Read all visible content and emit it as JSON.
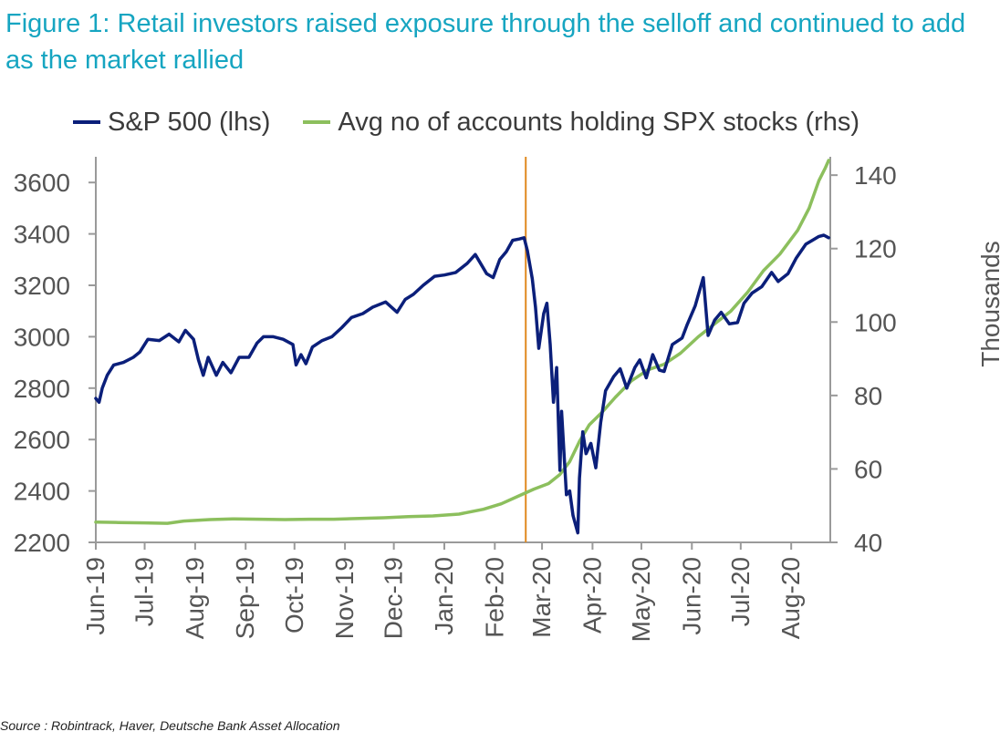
{
  "title": "Figure 1: Retail investors raised exposure through the selloff and continued to add as the market rallied",
  "source": "Source : Robintrack, Haver, Deutsche Bank Asset Allocation",
  "colors": {
    "title": "#16a5c1",
    "spx": "#0b1f7a",
    "accounts": "#8cbf5d",
    "marker": "#e08a20",
    "axis": "#9a9a9a"
  },
  "chart_data": {
    "type": "line",
    "x_type": "date",
    "xlim": [
      "2019-06-01",
      "2020-08-25"
    ],
    "x_tick_labels": [
      "Jun-19",
      "Jul-19",
      "Aug-19",
      "Sep-19",
      "Oct-19",
      "Nov-19",
      "Dec-19",
      "Jan-20",
      "Feb-20",
      "Mar-20",
      "Apr-20",
      "May-20",
      "Jun-20",
      "Jul-20",
      "Aug-20"
    ],
    "ylim_left": [
      2200,
      3700
    ],
    "y_ticks_left": [
      2200,
      2400,
      2600,
      2800,
      3000,
      3200,
      3400,
      3600
    ],
    "ylim_right": [
      40,
      145
    ],
    "y_ticks_right": [
      40,
      60,
      80,
      100,
      120,
      140
    ],
    "ylabel_right": "Thousands",
    "vertical_marker": "2020-02-20",
    "legend_position": "top",
    "series": [
      {
        "name": "S&P 500 (lhs)",
        "axis": "left",
        "points": [
          [
            "2019-06-01",
            2760
          ],
          [
            "2019-06-03",
            2745
          ],
          [
            "2019-06-05",
            2800
          ],
          [
            "2019-06-08",
            2850
          ],
          [
            "2019-06-12",
            2890
          ],
          [
            "2019-06-18",
            2900
          ],
          [
            "2019-06-24",
            2920
          ],
          [
            "2019-06-28",
            2940
          ],
          [
            "2019-07-03",
            2990
          ],
          [
            "2019-07-10",
            2985
          ],
          [
            "2019-07-16",
            3010
          ],
          [
            "2019-07-22",
            2980
          ],
          [
            "2019-07-26",
            3025
          ],
          [
            "2019-07-31",
            2990
          ],
          [
            "2019-08-03",
            2910
          ],
          [
            "2019-08-06",
            2850
          ],
          [
            "2019-08-09",
            2920
          ],
          [
            "2019-08-14",
            2850
          ],
          [
            "2019-08-18",
            2900
          ],
          [
            "2019-08-23",
            2860
          ],
          [
            "2019-08-28",
            2920
          ],
          [
            "2019-09-03",
            2920
          ],
          [
            "2019-09-08",
            2975
          ],
          [
            "2019-09-12",
            3000
          ],
          [
            "2019-09-18",
            3000
          ],
          [
            "2019-09-24",
            2990
          ],
          [
            "2019-09-30",
            2970
          ],
          [
            "2019-10-02",
            2890
          ],
          [
            "2019-10-05",
            2930
          ],
          [
            "2019-10-08",
            2895
          ],
          [
            "2019-10-12",
            2960
          ],
          [
            "2019-10-18",
            2985
          ],
          [
            "2019-10-24",
            3000
          ],
          [
            "2019-10-30",
            3035
          ],
          [
            "2019-11-05",
            3075
          ],
          [
            "2019-11-12",
            3090
          ],
          [
            "2019-11-18",
            3115
          ],
          [
            "2019-11-26",
            3135
          ],
          [
            "2019-12-03",
            3095
          ],
          [
            "2019-12-08",
            3145
          ],
          [
            "2019-12-13",
            3165
          ],
          [
            "2019-12-19",
            3200
          ],
          [
            "2019-12-26",
            3235
          ],
          [
            "2020-01-01",
            3240
          ],
          [
            "2020-01-08",
            3250
          ],
          [
            "2020-01-15",
            3285
          ],
          [
            "2020-01-20",
            3320
          ],
          [
            "2020-01-27",
            3245
          ],
          [
            "2020-01-31",
            3230
          ],
          [
            "2020-02-04",
            3300
          ],
          [
            "2020-02-08",
            3330
          ],
          [
            "2020-02-12",
            3375
          ],
          [
            "2020-02-16",
            3380
          ],
          [
            "2020-02-19",
            3385
          ],
          [
            "2020-02-21",
            3335
          ],
          [
            "2020-02-24",
            3225
          ],
          [
            "2020-02-26",
            3115
          ],
          [
            "2020-02-28",
            2955
          ],
          [
            "2020-03-02",
            3090
          ],
          [
            "2020-03-04",
            3130
          ],
          [
            "2020-03-06",
            2970
          ],
          [
            "2020-03-08",
            2745
          ],
          [
            "2020-03-10",
            2880
          ],
          [
            "2020-03-12",
            2480
          ],
          [
            "2020-03-13",
            2710
          ],
          [
            "2020-03-16",
            2385
          ],
          [
            "2020-03-18",
            2400
          ],
          [
            "2020-03-20",
            2305
          ],
          [
            "2020-03-23",
            2237
          ],
          [
            "2020-03-24",
            2450
          ],
          [
            "2020-03-26",
            2630
          ],
          [
            "2020-03-28",
            2545
          ],
          [
            "2020-03-31",
            2585
          ],
          [
            "2020-04-03",
            2490
          ],
          [
            "2020-04-06",
            2665
          ],
          [
            "2020-04-09",
            2790
          ],
          [
            "2020-04-14",
            2845
          ],
          [
            "2020-04-18",
            2875
          ],
          [
            "2020-04-22",
            2800
          ],
          [
            "2020-04-27",
            2880
          ],
          [
            "2020-04-30",
            2910
          ],
          [
            "2020-05-04",
            2840
          ],
          [
            "2020-05-08",
            2930
          ],
          [
            "2020-05-12",
            2870
          ],
          [
            "2020-05-15",
            2865
          ],
          [
            "2020-05-20",
            2970
          ],
          [
            "2020-05-26",
            2995
          ],
          [
            "2020-05-29",
            3045
          ],
          [
            "2020-06-03",
            3120
          ],
          [
            "2020-06-08",
            3230
          ],
          [
            "2020-06-11",
            3005
          ],
          [
            "2020-06-15",
            3065
          ],
          [
            "2020-06-19",
            3095
          ],
          [
            "2020-06-24",
            3050
          ],
          [
            "2020-06-29",
            3055
          ],
          [
            "2020-07-03",
            3130
          ],
          [
            "2020-07-08",
            3170
          ],
          [
            "2020-07-14",
            3195
          ],
          [
            "2020-07-20",
            3250
          ],
          [
            "2020-07-24",
            3215
          ],
          [
            "2020-07-30",
            3245
          ],
          [
            "2020-08-04",
            3305
          ],
          [
            "2020-08-10",
            3360
          ],
          [
            "2020-08-14",
            3375
          ],
          [
            "2020-08-18",
            3390
          ],
          [
            "2020-08-21",
            3395
          ],
          [
            "2020-08-24",
            3385
          ]
        ]
      },
      {
        "name": "Avg no of accounts holding SPX stocks (rhs)",
        "axis": "right",
        "points": [
          [
            "2019-06-01",
            45.5
          ],
          [
            "2019-06-15",
            45.4
          ],
          [
            "2019-07-01",
            45.3
          ],
          [
            "2019-07-15",
            45.2
          ],
          [
            "2019-07-25",
            45.8
          ],
          [
            "2019-08-10",
            46.2
          ],
          [
            "2019-08-25",
            46.4
          ],
          [
            "2019-09-10",
            46.3
          ],
          [
            "2019-09-25",
            46.2
          ],
          [
            "2019-10-10",
            46.3
          ],
          [
            "2019-10-25",
            46.3
          ],
          [
            "2019-11-10",
            46.5
          ],
          [
            "2019-11-25",
            46.7
          ],
          [
            "2019-12-10",
            47.0
          ],
          [
            "2019-12-25",
            47.2
          ],
          [
            "2020-01-10",
            47.7
          ],
          [
            "2020-01-25",
            49.0
          ],
          [
            "2020-02-05",
            50.5
          ],
          [
            "2020-02-15",
            52.5
          ],
          [
            "2020-02-25",
            54.5
          ],
          [
            "2020-03-05",
            56.0
          ],
          [
            "2020-03-12",
            58.5
          ],
          [
            "2020-03-18",
            62.0
          ],
          [
            "2020-03-24",
            67.5
          ],
          [
            "2020-03-30",
            72.0
          ],
          [
            "2020-04-07",
            75.5
          ],
          [
            "2020-04-15",
            79.5
          ],
          [
            "2020-04-25",
            84.0
          ],
          [
            "2020-05-05",
            87.0
          ],
          [
            "2020-05-15",
            88.5
          ],
          [
            "2020-05-25",
            91.5
          ],
          [
            "2020-06-05",
            96.0
          ],
          [
            "2020-06-15",
            99.5
          ],
          [
            "2020-06-25",
            103.0
          ],
          [
            "2020-07-05",
            108.0
          ],
          [
            "2020-07-15",
            114.0
          ],
          [
            "2020-07-25",
            118.5
          ],
          [
            "2020-08-05",
            125.0
          ],
          [
            "2020-08-12",
            131.0
          ],
          [
            "2020-08-18",
            138.5
          ],
          [
            "2020-08-22",
            142.0
          ],
          [
            "2020-08-24",
            144.0
          ]
        ]
      }
    ]
  }
}
